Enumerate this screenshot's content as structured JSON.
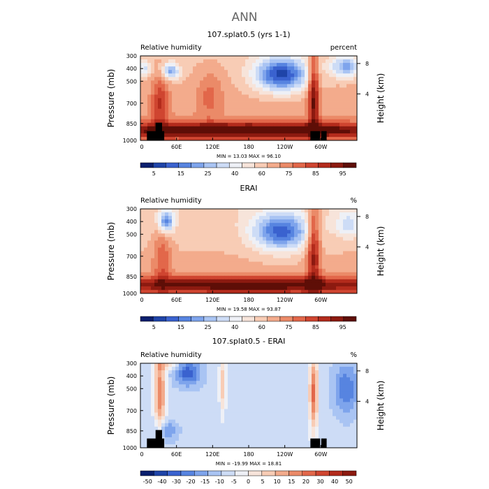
{
  "overall_title": "ANN",
  "chart_data": [
    {
      "type": "heatmap",
      "title": "107.splat0.5 (yrs 1-1)",
      "left_label": "Relative humidity",
      "right_label": "percent",
      "ylabel": "Pressure (mb)",
      "y2label": "Height (km)",
      "x_ticks": [
        "0",
        "60E",
        "120E",
        "180",
        "120W",
        "60W"
      ],
      "y_ticks": [
        "300",
        "400",
        "500",
        "700",
        "850",
        "1000"
      ],
      "y2_ticks": [
        "8",
        "4"
      ],
      "stats": {
        "min_label": "MIN =",
        "min": "13.03",
        "max_label": "MAX =",
        "max": "96.10"
      },
      "colorbar": {
        "labels": [
          "5",
          "15",
          "25",
          "40",
          "60",
          "75",
          "85",
          "95"
        ],
        "colors": [
          "#0a1f6e",
          "#1f44a8",
          "#3a62cf",
          "#5784e0",
          "#7ea4ec",
          "#a9c4f3",
          "#cddcf6",
          "#eef0f6",
          "#f7e4da",
          "#f8ccb5",
          "#f3ab8c",
          "#eb8a68",
          "#e2674a",
          "#cf4530",
          "#b32b1c",
          "#8c1a10",
          "#5e0e07"
        ]
      },
      "field": "model"
    },
    {
      "type": "heatmap",
      "title": "ERAI",
      "left_label": "Relative humidity",
      "right_label": "%",
      "ylabel": "Pressure (mb)",
      "y2label": "Height (km)",
      "x_ticks": [
        "0",
        "60E",
        "120E",
        "180",
        "120W",
        "60W"
      ],
      "y_ticks": [
        "300",
        "400",
        "500",
        "700",
        "850",
        "1000"
      ],
      "y2_ticks": [
        "8",
        "4"
      ],
      "stats": {
        "min_label": "MIN =",
        "min": "19.58",
        "max_label": "MAX =",
        "max": "93.87"
      },
      "colorbar": {
        "labels": [
          "5",
          "15",
          "25",
          "40",
          "60",
          "75",
          "85",
          "95"
        ],
        "colors": [
          "#0a1f6e",
          "#1f44a8",
          "#3a62cf",
          "#5784e0",
          "#7ea4ec",
          "#a9c4f3",
          "#cddcf6",
          "#eef0f6",
          "#f7e4da",
          "#f8ccb5",
          "#f3ab8c",
          "#eb8a68",
          "#e2674a",
          "#cf4530",
          "#b32b1c",
          "#8c1a10",
          "#5e0e07"
        ]
      },
      "field": "obs"
    },
    {
      "type": "heatmap",
      "title": "107.splat0.5 - ERAI",
      "left_label": "Relative humidity",
      "right_label": "%",
      "ylabel": "Pressure (mb)",
      "y2label": "Height (km)",
      "x_ticks": [
        "0",
        "60E",
        "120E",
        "180",
        "120W",
        "60W"
      ],
      "y_ticks": [
        "300",
        "400",
        "500",
        "700",
        "850",
        "1000"
      ],
      "y2_ticks": [
        "8",
        "4"
      ],
      "stats": {
        "min_label": "MIN =",
        "min": "-19.99",
        "max_label": "MAX =",
        "max": "18.81"
      },
      "colorbar": {
        "labels": [
          "-50",
          "-40",
          "-30",
          "-20",
          "-15",
          "-10",
          "-5",
          "0",
          "5",
          "10",
          "15",
          "20",
          "30",
          "40",
          "50"
        ],
        "colors": [
          "#0a1f6e",
          "#1f44a8",
          "#3a62cf",
          "#5784e0",
          "#7ea4ec",
          "#a9c4f3",
          "#cddcf6",
          "#eef0f6",
          "#f7e4da",
          "#f8ccb5",
          "#f3ab8c",
          "#eb8a68",
          "#e2674a",
          "#cf4530",
          "#b32b1c",
          "#8c1a10"
        ]
      },
      "field": "diff"
    }
  ]
}
